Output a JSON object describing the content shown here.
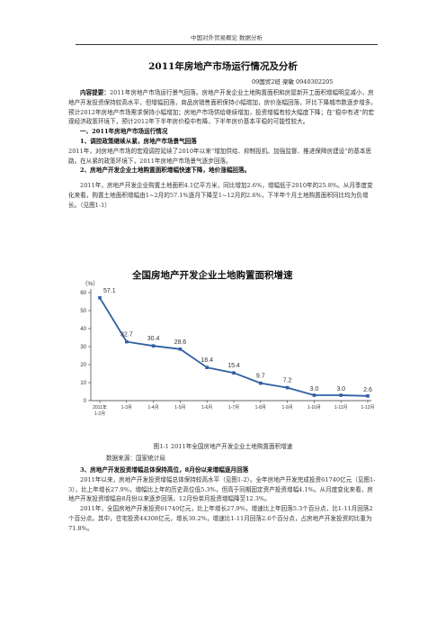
{
  "header": "中国对外贸易概论 数据分析",
  "title": "2011年房地产市场运行情况及分析",
  "author": "09国贸2班 梁敏 0940302205",
  "abstract_label": "内容提要：",
  "abstract_text": "2011年房地产市场运行景气回落。房地产开发企业土地购置面积和房屋新开工面积增幅明显减小，房地产开发投资保持较高水平，但增幅回落，商品房销售面积保持小幅增加，房价涨幅回落，环比下降城市数逐步增多。预计2012年房地产市场需求保持小幅增加；房地产市场供给继续增加，投资增幅有较大幅度下降；在“稳中有进”的宏观经济政策环境下，预计2012年下半年房价稳中有降，下半年房价基本平稳的可能性较大。",
  "section1": "一、2011年房地产市场运行情况",
  "sub1": "1、调控政策继续从紧，房地产市场景气回落",
  "para1": "2011年，对房地产市场的宏观调控延续了2010年以来“增加供给、抑制投机、加强监督、推进保障房建设”的基本思路。在从紧的政策环境下，2011年房地产市场景气逐步回落。",
  "sub2": "2、房地产开发企业土地购置面积增幅快速下降，地价涨幅回落。",
  "para2": "2011年，房地产开发企业购置土地面积4.1亿平方米，同比增加2.6%，增幅低于2010年的25.8%。从月季度变化来看，购置土地面积增幅由1~2月的57.1%逐月下降至1~12月的2.6%，下半年个月土地购置面积同比均为负增长。（见图1-1）",
  "chart_data": {
    "type": "line",
    "title": "全国房地产开发企业土地购置面积增速",
    "ylabel": "（%）",
    "categories": [
      "2011年1-2月",
      "1-3月",
      "1-4月",
      "1-5月",
      "1-6月",
      "1-7月",
      "1-8月",
      "1-9月",
      "1-10月",
      "1-11月",
      "1-12月"
    ],
    "category_lines": [
      [
        "2011年",
        "1-2月"
      ],
      [
        "1-3月"
      ],
      [
        "1-4月"
      ],
      [
        "1-5月"
      ],
      [
        "1-6月"
      ],
      [
        "1-7月"
      ],
      [
        "1-8月"
      ],
      [
        "1-9月"
      ],
      [
        "1-10月"
      ],
      [
        "1-11月"
      ],
      [
        "1-12月"
      ]
    ],
    "values": [
      57.1,
      32.7,
      30.4,
      28.6,
      18.4,
      15.4,
      9.7,
      7.2,
      3.0,
      3.0,
      2.6
    ],
    "value_labels": [
      "57.1",
      "32.7",
      "30.4",
      "28.6",
      "18.4",
      "15.4",
      "9.7",
      "7.2",
      "3.0",
      "3.0",
      "2.6"
    ],
    "ylim": [
      0,
      60
    ],
    "yticks": [
      "0",
      "10",
      "20",
      "30",
      "40",
      "50",
      "60"
    ],
    "grid": false,
    "line_color": "#2f5fa3"
  },
  "caption": "图1-1    2011年全国房地产开发企业土地购置面积增速",
  "source": "数据来源：国家统计局",
  "sub3": "3、房地产开发投资增幅总体保持高位，8月份以来增幅逐月回落",
  "para3": "2011年以来，房地产开发投资增幅总体保持较高水平（见图1-2）。全年房地产开发完成投资61740亿元（见图1-3），比上年增长27.9%，增幅比上年的历史高位低5.3%，但高于同期固定资产投资增幅4.1%。从月度变化来看，房地产开发投资增幅自8月份以来逐步回落，12月份单月投资增幅降至12.3%。",
  "para4": "2011年，全国房地产开发投资61740亿元，比上年增长27.9%，增速比上年回落5.3个百分点，比1-11月回落2个百分点。其中，住宅投资44308亿元，增长30.2%，增速比1-11月回落2.6个百分点，占房地产开发投资的比重为71.8%。"
}
